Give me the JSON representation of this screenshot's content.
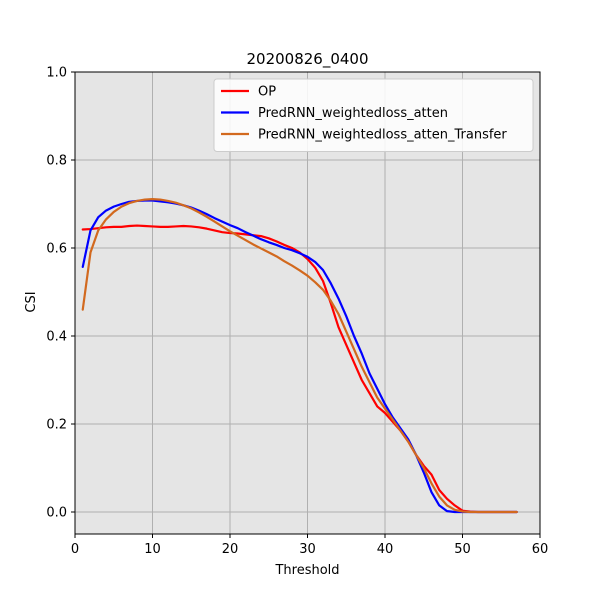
{
  "chart_data": {
    "type": "line",
    "title": "20200826_0400",
    "xlabel": "Threshold",
    "ylabel": "CSI",
    "xlim": [
      0,
      60
    ],
    "ylim": [
      -0.05,
      1.0
    ],
    "xticks": [
      0,
      10,
      20,
      30,
      40,
      50,
      60
    ],
    "yticks": [
      0.0,
      0.2,
      0.4,
      0.6,
      0.8,
      1.0
    ],
    "xtick_labels": [
      "0",
      "10",
      "20",
      "30",
      "40",
      "50",
      "60"
    ],
    "ytick_labels": [
      "0.0",
      "0.2",
      "0.4",
      "0.6",
      "0.8",
      "1.0"
    ],
    "grid": true,
    "background": "#e5e5e5",
    "legend_position": "top-right",
    "series": [
      {
        "name": "OP",
        "color": "#ff0000",
        "points": [
          [
            1,
            0.642
          ],
          [
            2,
            0.643
          ],
          [
            3,
            0.645
          ],
          [
            4,
            0.647
          ],
          [
            5,
            0.648
          ],
          [
            6,
            0.648
          ],
          [
            7,
            0.65
          ],
          [
            8,
            0.651
          ],
          [
            9,
            0.65
          ],
          [
            10,
            0.649
          ],
          [
            11,
            0.648
          ],
          [
            12,
            0.648
          ],
          [
            13,
            0.649
          ],
          [
            14,
            0.65
          ],
          [
            15,
            0.649
          ],
          [
            16,
            0.647
          ],
          [
            17,
            0.644
          ],
          [
            18,
            0.64
          ],
          [
            19,
            0.636
          ],
          [
            20,
            0.634
          ],
          [
            21,
            0.633
          ],
          [
            22,
            0.631
          ],
          [
            23,
            0.629
          ],
          [
            24,
            0.627
          ],
          [
            25,
            0.622
          ],
          [
            26,
            0.615
          ],
          [
            27,
            0.607
          ],
          [
            28,
            0.6
          ],
          [
            29,
            0.59
          ],
          [
            30,
            0.575
          ],
          [
            31,
            0.555
          ],
          [
            32,
            0.525
          ],
          [
            33,
            0.475
          ],
          [
            34,
            0.42
          ],
          [
            35,
            0.38
          ],
          [
            36,
            0.34
          ],
          [
            37,
            0.3
          ],
          [
            38,
            0.27
          ],
          [
            39,
            0.24
          ],
          [
            40,
            0.225
          ],
          [
            41,
            0.205
          ],
          [
            42,
            0.185
          ],
          [
            43,
            0.16
          ],
          [
            44,
            0.13
          ],
          [
            45,
            0.105
          ],
          [
            46,
            0.085
          ],
          [
            47,
            0.05
          ],
          [
            48,
            0.03
          ],
          [
            49,
            0.015
          ],
          [
            50,
            0.003
          ],
          [
            51,
            0.001
          ],
          [
            52,
            0.0
          ],
          [
            53,
            0.0
          ],
          [
            54,
            0.0
          ],
          [
            55,
            0.0
          ],
          [
            56,
            0.0
          ],
          [
            57,
            0.0
          ]
        ]
      },
      {
        "name": "PredRNN_weightedloss_atten",
        "color": "#0000ff",
        "points": [
          [
            1,
            0.557
          ],
          [
            2,
            0.64
          ],
          [
            3,
            0.67
          ],
          [
            4,
            0.685
          ],
          [
            5,
            0.694
          ],
          [
            6,
            0.7
          ],
          [
            7,
            0.705
          ],
          [
            8,
            0.707
          ],
          [
            9,
            0.708
          ],
          [
            10,
            0.708
          ],
          [
            11,
            0.706
          ],
          [
            12,
            0.704
          ],
          [
            13,
            0.701
          ],
          [
            14,
            0.697
          ],
          [
            15,
            0.692
          ],
          [
            16,
            0.685
          ],
          [
            17,
            0.677
          ],
          [
            18,
            0.668
          ],
          [
            19,
            0.66
          ],
          [
            20,
            0.652
          ],
          [
            21,
            0.645
          ],
          [
            22,
            0.636
          ],
          [
            23,
            0.628
          ],
          [
            24,
            0.62
          ],
          [
            25,
            0.613
          ],
          [
            26,
            0.607
          ],
          [
            27,
            0.6
          ],
          [
            28,
            0.595
          ],
          [
            29,
            0.588
          ],
          [
            30,
            0.58
          ],
          [
            31,
            0.568
          ],
          [
            32,
            0.55
          ],
          [
            33,
            0.52
          ],
          [
            34,
            0.485
          ],
          [
            35,
            0.445
          ],
          [
            36,
            0.4
          ],
          [
            37,
            0.36
          ],
          [
            38,
            0.315
          ],
          [
            39,
            0.28
          ],
          [
            40,
            0.245
          ],
          [
            41,
            0.215
          ],
          [
            42,
            0.19
          ],
          [
            43,
            0.165
          ],
          [
            44,
            0.13
          ],
          [
            45,
            0.09
          ],
          [
            46,
            0.045
          ],
          [
            47,
            0.015
          ],
          [
            48,
            0.002
          ],
          [
            49,
            0.0
          ],
          [
            50,
            0.0
          ],
          [
            51,
            0.0
          ],
          [
            52,
            0.0
          ],
          [
            53,
            0.0
          ],
          [
            54,
            0.0
          ],
          [
            55,
            0.0
          ],
          [
            56,
            0.0
          ],
          [
            57,
            0.0
          ]
        ]
      },
      {
        "name": "PredRNN_weightedloss_atten_Transfer",
        "color": "#d2691e",
        "points": [
          [
            1,
            0.46
          ],
          [
            2,
            0.59
          ],
          [
            3,
            0.64
          ],
          [
            4,
            0.665
          ],
          [
            5,
            0.682
          ],
          [
            6,
            0.694
          ],
          [
            7,
            0.702
          ],
          [
            8,
            0.707
          ],
          [
            9,
            0.71
          ],
          [
            10,
            0.711
          ],
          [
            11,
            0.71
          ],
          [
            12,
            0.707
          ],
          [
            13,
            0.703
          ],
          [
            14,
            0.697
          ],
          [
            15,
            0.69
          ],
          [
            16,
            0.681
          ],
          [
            17,
            0.671
          ],
          [
            18,
            0.66
          ],
          [
            19,
            0.649
          ],
          [
            20,
            0.638
          ],
          [
            21,
            0.628
          ],
          [
            22,
            0.618
          ],
          [
            23,
            0.608
          ],
          [
            24,
            0.599
          ],
          [
            25,
            0.59
          ],
          [
            26,
            0.581
          ],
          [
            27,
            0.57
          ],
          [
            28,
            0.56
          ],
          [
            29,
            0.549
          ],
          [
            30,
            0.537
          ],
          [
            31,
            0.522
          ],
          [
            32,
            0.505
          ],
          [
            33,
            0.48
          ],
          [
            34,
            0.45
          ],
          [
            35,
            0.41
          ],
          [
            36,
            0.37
          ],
          [
            37,
            0.33
          ],
          [
            38,
            0.295
          ],
          [
            39,
            0.26
          ],
          [
            40,
            0.235
          ],
          [
            41,
            0.21
          ],
          [
            42,
            0.185
          ],
          [
            43,
            0.16
          ],
          [
            44,
            0.13
          ],
          [
            45,
            0.1
          ],
          [
            46,
            0.065
          ],
          [
            47,
            0.035
          ],
          [
            48,
            0.015
          ],
          [
            49,
            0.005
          ],
          [
            50,
            0.001
          ],
          [
            51,
            0.0
          ],
          [
            52,
            0.0
          ],
          [
            53,
            0.0
          ],
          [
            54,
            0.0
          ],
          [
            55,
            0.0
          ],
          [
            56,
            0.0
          ],
          [
            57,
            0.0
          ]
        ]
      }
    ]
  }
}
